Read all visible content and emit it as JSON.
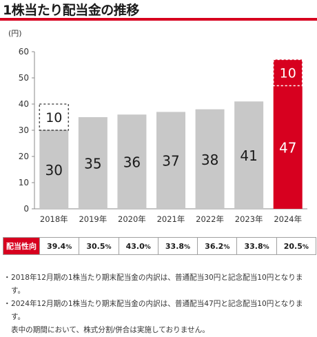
{
  "title": "1株当たり配当金の推移",
  "colors": {
    "accent": "#d7001f",
    "bar": "#c8c8c8",
    "text": "#1a1a1a"
  },
  "chart_data": {
    "type": "bar",
    "stacked": true,
    "unit_label": "(円)",
    "categories": [
      "2018年",
      "2019年",
      "2020年",
      "2021年",
      "2022年",
      "2023年",
      "2024年"
    ],
    "series": [
      {
        "values": [
          30,
          35,
          36,
          37,
          38,
          41,
          47
        ]
      },
      {
        "values": [
          10,
          0,
          0,
          0,
          0,
          0,
          10
        ]
      }
    ],
    "ylim": [
      0,
      60
    ],
    "yticks": [
      0,
      10,
      20,
      30,
      40,
      50,
      60
    ],
    "highlight_category": "2024年",
    "grid": false
  },
  "ratio_table": {
    "label": "配当性向",
    "values": [
      {
        "num": "39.4",
        "unit": "%"
      },
      {
        "num": "30.5",
        "unit": "%"
      },
      {
        "num": "43.0",
        "unit": "%"
      },
      {
        "num": "33.8",
        "unit": "%"
      },
      {
        "num": "36.2",
        "unit": "%"
      },
      {
        "num": "33.8",
        "unit": "%"
      },
      {
        "num": "20.5",
        "unit": "%"
      }
    ]
  },
  "notes": [
    {
      "bullet": "・",
      "text": "2018年12月期の1株当たり期末配当金の内訳は、普通配当30円と記念配当10円となります。"
    },
    {
      "bullet": "・",
      "text": "2024年12月期の1株当たり期末配当金の内訳は、普通配当47円と記念配当10円となります。"
    },
    {
      "bullet": "",
      "text": "表中の期間において、株式分割/併合は実施しておりません。"
    }
  ]
}
